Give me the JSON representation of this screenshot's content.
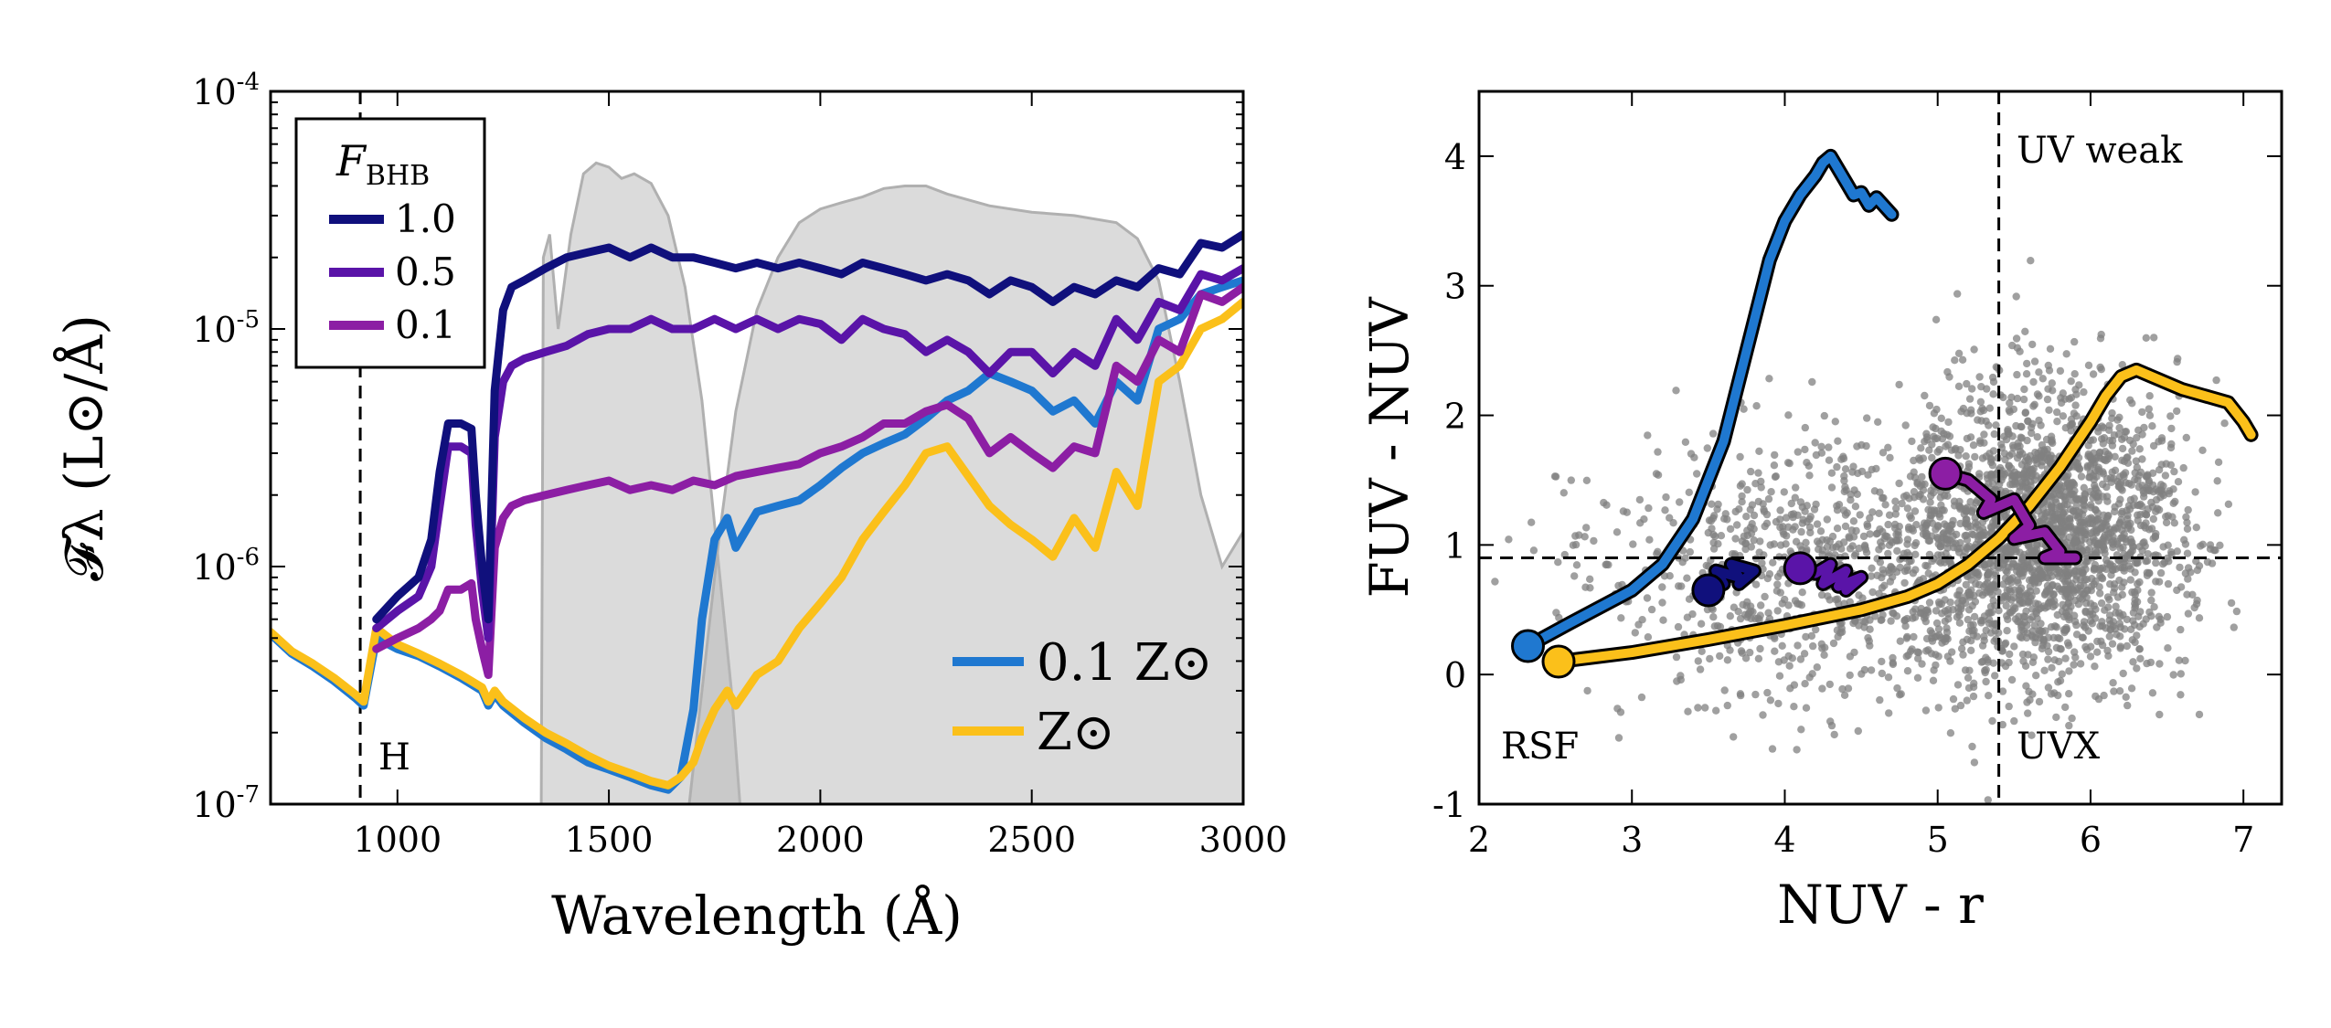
{
  "chart_data": [
    {
      "type": "line",
      "xlabel": "Wavelength (Å)",
      "ylabel": "𝓕λ (L⊙/Å)",
      "xlim": [
        700,
        3000
      ],
      "ylim": [
        1e-07,
        0.0001
      ],
      "yscale": "log",
      "x_ticks": [
        "1000",
        "1500",
        "2000",
        "2500",
        "3000"
      ],
      "y_ticks": [
        {
          "base": "10",
          "exp": "-7"
        },
        {
          "base": "10",
          "exp": "-6"
        },
        {
          "base": "10",
          "exp": "-5"
        },
        {
          "base": "10",
          "exp": "-4"
        }
      ],
      "grid": false,
      "legend_fbhb": {
        "title": "F",
        "title_sub": "BHB",
        "placement": "top-left",
        "entries": [
          {
            "label": "1.0",
            "color": "#10107c"
          },
          {
            "label": "0.5",
            "color": "#5a14a8"
          },
          {
            "label": "0.1",
            "color": "#8c1ea4"
          }
        ]
      },
      "legend_metallicity": {
        "placement": "lower-right",
        "entries": [
          {
            "label": "0.1 Z⊙",
            "color": "#1f78d0"
          },
          {
            "label": "Z⊙",
            "color": "#fbc01a"
          }
        ]
      },
      "annotations": [
        {
          "text": "H",
          "x": 912
        }
      ],
      "vline_x": 912,
      "filters": [
        {
          "x": [
            1340,
            1345,
            1360,
            1380,
            1410,
            1440,
            1470,
            1500,
            1530,
            1560,
            1600,
            1640,
            1680,
            1720,
            1760,
            1790,
            1810
          ],
          "y": [
            1e-07,
            2e-05,
            2.5e-05,
            1e-05,
            2.5e-05,
            4.5e-05,
            5e-05,
            4.8e-05,
            4.3e-05,
            4.5e-05,
            4.1e-05,
            3e-05,
            1.5e-05,
            5e-06,
            1e-06,
            3e-07,
            1e-07
          ]
        },
        {
          "x": [
            1690,
            1720,
            1760,
            1800,
            1850,
            1900,
            1950,
            2000,
            2050,
            2100,
            2150,
            2200,
            2250,
            2300,
            2400,
            2500,
            2600,
            2700,
            2750,
            2800,
            2850,
            2900,
            2950,
            3000,
            3000
          ],
          "y": [
            1e-07,
            3e-07,
            1.3e-06,
            4.5e-06,
            1.2e-05,
            2e-05,
            2.8e-05,
            3.2e-05,
            3.4e-05,
            3.6e-05,
            3.9e-05,
            4e-05,
            4e-05,
            3.7e-05,
            3.3e-05,
            3.1e-05,
            3e-05,
            2.8e-05,
            2.4e-05,
            1.6e-05,
            6e-06,
            2e-06,
            1e-06,
            1.4e-06,
            1e-07
          ]
        }
      ],
      "series": [
        {
          "name": "1.0",
          "color": "#10107c",
          "x": [
            950,
            1000,
            1050,
            1080,
            1100,
            1120,
            1150,
            1175,
            1185,
            1200,
            1215,
            1230,
            1250,
            1270,
            1300,
            1350,
            1400,
            1450,
            1500,
            1550,
            1600,
            1650,
            1700,
            1750,
            1800,
            1850,
            1900,
            1950,
            2000,
            2050,
            2100,
            2150,
            2200,
            2250,
            2300,
            2350,
            2400,
            2450,
            2500,
            2550,
            2600,
            2650,
            2700,
            2750,
            2800,
            2850,
            2900,
            2950,
            3000
          ],
          "y": [
            6e-07,
            7.5e-07,
            9e-07,
            1.3e-06,
            2.5e-06,
            4e-06,
            4e-06,
            3.8e-06,
            2e-06,
            1e-06,
            6e-07,
            5.5e-06,
            1.2e-05,
            1.5e-05,
            1.6e-05,
            1.8e-05,
            2e-05,
            2.1e-05,
            2.2e-05,
            2e-05,
            2.2e-05,
            2e-05,
            2e-05,
            1.9e-05,
            1.8e-05,
            1.9e-05,
            1.8e-05,
            1.9e-05,
            1.8e-05,
            1.7e-05,
            1.9e-05,
            1.8e-05,
            1.7e-05,
            1.6e-05,
            1.7e-05,
            1.6e-05,
            1.4e-05,
            1.6e-05,
            1.5e-05,
            1.3e-05,
            1.5e-05,
            1.4e-05,
            1.6e-05,
            1.5e-05,
            1.8e-05,
            1.7e-05,
            2.3e-05,
            2.2e-05,
            2.5e-05
          ]
        },
        {
          "name": "0.5",
          "color": "#5a14a8",
          "x": [
            950,
            1000,
            1050,
            1080,
            1100,
            1120,
            1150,
            1175,
            1185,
            1200,
            1215,
            1230,
            1250,
            1270,
            1300,
            1350,
            1400,
            1450,
            1500,
            1550,
            1600,
            1650,
            1700,
            1750,
            1800,
            1850,
            1900,
            1950,
            2000,
            2050,
            2100,
            2150,
            2200,
            2250,
            2300,
            2350,
            2400,
            2450,
            2500,
            2550,
            2600,
            2650,
            2700,
            2750,
            2800,
            2850,
            2900,
            2950,
            3000
          ],
          "y": [
            5.5e-07,
            6.5e-07,
            7.5e-07,
            1e-06,
            1.8e-06,
            3.2e-06,
            3.2e-06,
            3e-06,
            1.5e-06,
            8e-07,
            5e-07,
            3.5e-06,
            6e-06,
            7e-06,
            7.5e-06,
            8e-06,
            8.5e-06,
            9.5e-06,
            1e-05,
            1e-05,
            1.1e-05,
            1e-05,
            1e-05,
            1.1e-05,
            1e-05,
            1.1e-05,
            1e-05,
            1.1e-05,
            1.05e-05,
            9e-06,
            1.1e-05,
            1e-05,
            9.5e-06,
            8e-06,
            9e-06,
            8e-06,
            6.5e-06,
            8e-06,
            8e-06,
            6.5e-06,
            8e-06,
            7e-06,
            1.1e-05,
            9e-06,
            1.3e-05,
            1.2e-05,
            1.7e-05,
            1.6e-05,
            1.8e-05
          ]
        },
        {
          "name": "0.1",
          "color": "#8c1ea4",
          "x": [
            950,
            1000,
            1050,
            1080,
            1100,
            1120,
            1150,
            1175,
            1185,
            1200,
            1215,
            1230,
            1250,
            1270,
            1300,
            1350,
            1400,
            1450,
            1500,
            1550,
            1600,
            1650,
            1700,
            1750,
            1800,
            1850,
            1900,
            1950,
            2000,
            2050,
            2100,
            2150,
            2200,
            2250,
            2300,
            2350,
            2400,
            2450,
            2500,
            2550,
            2600,
            2650,
            2700,
            2750,
            2800,
            2850,
            2900,
            2950,
            3000
          ],
          "y": [
            4.5e-07,
            5e-07,
            5.5e-07,
            6e-07,
            6.5e-07,
            8e-07,
            8e-07,
            8.5e-07,
            6e-07,
            4.5e-07,
            3.5e-07,
            1.2e-06,
            1.6e-06,
            1.8e-06,
            1.9e-06,
            2e-06,
            2.1e-06,
            2.2e-06,
            2.3e-06,
            2.1e-06,
            2.2e-06,
            2.1e-06,
            2.3e-06,
            2.2e-06,
            2.4e-06,
            2.5e-06,
            2.6e-06,
            2.7e-06,
            3e-06,
            3.2e-06,
            3.5e-06,
            4e-06,
            4e-06,
            4.5e-06,
            4.8e-06,
            4.2e-06,
            3e-06,
            3.5e-06,
            3e-06,
            2.6e-06,
            3.2e-06,
            3e-06,
            7e-06,
            6e-06,
            9e-06,
            8e-06,
            1.4e-05,
            1.3e-05,
            1.5e-05
          ]
        },
        {
          "name": "0.1 Z⊙",
          "color": "#1f78d0",
          "x": [
            700,
            750,
            800,
            850,
            900,
            920,
            950,
            1000,
            1050,
            1100,
            1150,
            1200,
            1215,
            1230,
            1250,
            1300,
            1350,
            1400,
            1450,
            1500,
            1550,
            1600,
            1640,
            1670,
            1700,
            1720,
            1750,
            1780,
            1800,
            1850,
            1900,
            1950,
            2000,
            2050,
            2100,
            2150,
            2200,
            2250,
            2300,
            2350,
            2400,
            2450,
            2500,
            2550,
            2600,
            2650,
            2700,
            2750,
            2800,
            2850,
            2900,
            2950,
            3000
          ],
          "y": [
            5.2e-07,
            4.3e-07,
            3.8e-07,
            3.3e-07,
            2.8e-07,
            2.6e-07,
            5e-07,
            4.5e-07,
            4.2e-07,
            3.8e-07,
            3.4e-07,
            3e-07,
            2.6e-07,
            2.9e-07,
            2.6e-07,
            2.2e-07,
            1.9e-07,
            1.7e-07,
            1.5e-07,
            1.4e-07,
            1.3e-07,
            1.2e-07,
            1.15e-07,
            1.3e-07,
            2.5e-07,
            6e-07,
            1.3e-06,
            1.6e-06,
            1.2e-06,
            1.7e-06,
            1.8e-06,
            1.9e-06,
            2.2e-06,
            2.6e-06,
            3e-06,
            3.3e-06,
            3.6e-06,
            4.2e-06,
            5e-06,
            5.5e-06,
            6.5e-06,
            6e-06,
            5.5e-06,
            4.5e-06,
            5e-06,
            4e-06,
            6e-06,
            5e-06,
            1e-05,
            1.1e-05,
            1.4e-05,
            1.5e-05,
            1.6e-05
          ]
        },
        {
          "name": "Z⊙",
          "color": "#fbc01a",
          "x": [
            700,
            750,
            800,
            850,
            900,
            920,
            950,
            1000,
            1050,
            1100,
            1150,
            1200,
            1215,
            1230,
            1250,
            1300,
            1350,
            1400,
            1450,
            1500,
            1550,
            1600,
            1640,
            1670,
            1700,
            1720,
            1750,
            1780,
            1800,
            1850,
            1900,
            1950,
            2000,
            2050,
            2100,
            2150,
            2200,
            2250,
            2300,
            2350,
            2400,
            2450,
            2500,
            2550,
            2600,
            2650,
            2700,
            2750,
            2800,
            2850,
            2900,
            2950,
            3000
          ],
          "y": [
            5.3e-07,
            4.4e-07,
            3.9e-07,
            3.4e-07,
            2.9e-07,
            2.7e-07,
            5.5e-07,
            4.7e-07,
            4.3e-07,
            3.9e-07,
            3.5e-07,
            3.1e-07,
            2.7e-07,
            3e-07,
            2.7e-07,
            2.3e-07,
            2e-07,
            1.8e-07,
            1.6e-07,
            1.45e-07,
            1.35e-07,
            1.25e-07,
            1.2e-07,
            1.3e-07,
            1.5e-07,
            1.9e-07,
            2.5e-07,
            3e-07,
            2.6e-07,
            3.5e-07,
            4e-07,
            5.5e-07,
            7e-07,
            9e-07,
            1.3e-06,
            1.7e-06,
            2.2e-06,
            3e-06,
            3.2e-06,
            2.4e-06,
            1.8e-06,
            1.5e-06,
            1.3e-06,
            1.1e-06,
            1.6e-06,
            1.2e-06,
            2.5e-06,
            1.8e-06,
            6e-06,
            7e-06,
            1e-05,
            1.1e-05,
            1.3e-05
          ]
        }
      ]
    },
    {
      "type": "scatter",
      "xlabel": "NUV - r",
      "ylabel": "FUV - NUV",
      "xlim": [
        2,
        7.25
      ],
      "ylim": [
        -1,
        4.5
      ],
      "x_ticks": [
        "2",
        "3",
        "4",
        "5",
        "6",
        "7"
      ],
      "y_ticks": [
        "-1",
        "0",
        "1",
        "2",
        "3",
        "4"
      ],
      "grid": false,
      "hline_y": 0.9,
      "vline_x": 5.4,
      "region_labels": [
        "UV weak",
        "RSF",
        "UVX"
      ],
      "background_points": {
        "color": "#808080",
        "count_approx": 3000
      },
      "tracks": [
        {
          "name": "0.1 Z⊙",
          "color": "#1f78d0",
          "x": [
            2.32,
            2.6,
            3.0,
            3.2,
            3.4,
            3.6,
            3.75,
            3.9,
            4.0,
            4.1,
            4.2,
            4.25,
            4.3,
            4.4,
            4.45,
            4.5,
            4.55,
            4.6,
            4.7
          ],
          "y": [
            0.22,
            0.4,
            0.65,
            0.85,
            1.2,
            1.8,
            2.5,
            3.2,
            3.5,
            3.7,
            3.85,
            3.95,
            4.0,
            3.8,
            3.7,
            3.72,
            3.62,
            3.68,
            3.55
          ]
        },
        {
          "name": "Z⊙",
          "color": "#fbc01a",
          "x": [
            2.52,
            3.0,
            3.5,
            4.0,
            4.5,
            4.8,
            5.0,
            5.2,
            5.4,
            5.6,
            5.8,
            6.0,
            6.1,
            6.2,
            6.3,
            6.4,
            6.6,
            6.9,
            7.0,
            7.05
          ],
          "y": [
            0.1,
            0.17,
            0.27,
            0.38,
            0.5,
            0.6,
            0.7,
            0.85,
            1.05,
            1.3,
            1.6,
            1.95,
            2.15,
            2.3,
            2.35,
            2.3,
            2.2,
            2.1,
            1.95,
            1.85
          ]
        },
        {
          "name": "1.0",
          "color": "#10107c",
          "x": [
            3.5,
            3.6,
            3.55,
            3.7,
            3.65,
            3.8,
            3.7
          ],
          "y": [
            0.65,
            0.7,
            0.8,
            0.75,
            0.85,
            0.8,
            0.7
          ]
        },
        {
          "name": "0.5",
          "color": "#5a14a8",
          "x": [
            4.1,
            4.2,
            4.3,
            4.25,
            4.4,
            4.35,
            4.5,
            4.4
          ],
          "y": [
            0.82,
            0.78,
            0.85,
            0.7,
            0.8,
            0.68,
            0.75,
            0.65
          ]
        },
        {
          "name": "0.1",
          "color": "#8c1ea4",
          "x": [
            5.05,
            5.2,
            5.35,
            5.3,
            5.5,
            5.6,
            5.5,
            5.7,
            5.8,
            5.7,
            5.9
          ],
          "y": [
            1.55,
            1.5,
            1.35,
            1.25,
            1.35,
            1.15,
            1.05,
            1.1,
            0.95,
            0.9,
            0.9
          ]
        }
      ]
    }
  ]
}
